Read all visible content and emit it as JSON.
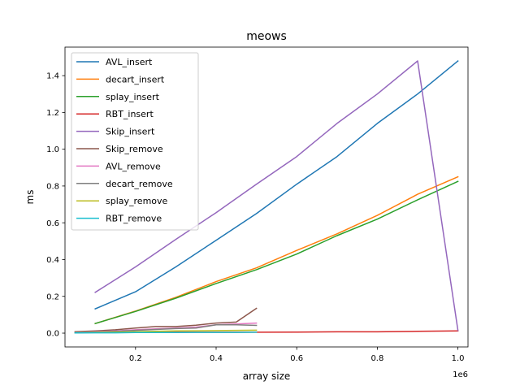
{
  "chart_data": {
    "type": "line",
    "title": "meows",
    "xlabel": "array size",
    "ylabel": "ms",
    "x_offset_text": "1e6",
    "xlim": [
      0.025,
      1.025
    ],
    "ylim": [
      -0.075,
      1.555
    ],
    "xticks": [
      {
        "value": 0.2,
        "label": "0.2"
      },
      {
        "value": 0.4,
        "label": "0.4"
      },
      {
        "value": 0.6,
        "label": "0.6"
      },
      {
        "value": 0.8,
        "label": "0.8"
      },
      {
        "value": 1.0,
        "label": "1.0"
      }
    ],
    "yticks": [
      {
        "value": 0.0,
        "label": "0.0"
      },
      {
        "value": 0.2,
        "label": "0.2"
      },
      {
        "value": 0.4,
        "label": "0.4"
      },
      {
        "value": 0.6,
        "label": "0.6"
      },
      {
        "value": 0.8,
        "label": "0.8"
      },
      {
        "value": 1.0,
        "label": "1.0"
      },
      {
        "value": 1.2,
        "label": "1.2"
      },
      {
        "value": 1.4,
        "label": "1.4"
      }
    ],
    "grid": false,
    "legend_position": "top-left",
    "series": [
      {
        "name": "AVL_insert",
        "color": "#1f77b4",
        "x": [
          0.1,
          0.2,
          0.3,
          0.4,
          0.5,
          0.6,
          0.7,
          0.8,
          0.9,
          1.0
        ],
        "y": [
          0.132,
          0.225,
          0.36,
          0.505,
          0.65,
          0.81,
          0.96,
          1.14,
          1.3,
          1.48
        ]
      },
      {
        "name": "decart_insert",
        "color": "#ff7f0e",
        "x": [
          0.1,
          0.2,
          0.3,
          0.4,
          0.5,
          0.6,
          0.7,
          0.8,
          0.9,
          1.0
        ],
        "y": [
          0.052,
          0.12,
          0.195,
          0.28,
          0.355,
          0.45,
          0.54,
          0.64,
          0.755,
          0.85
        ]
      },
      {
        "name": "splay_insert",
        "color": "#2ca02c",
        "x": [
          0.1,
          0.2,
          0.3,
          0.4,
          0.5,
          0.6,
          0.7,
          0.8,
          0.9,
          1.0
        ],
        "y": [
          0.052,
          0.118,
          0.19,
          0.27,
          0.345,
          0.43,
          0.53,
          0.62,
          0.725,
          0.825
        ]
      },
      {
        "name": "RBT_insert",
        "color": "#d62728",
        "x": [
          0.1,
          0.2,
          0.3,
          0.4,
          0.5,
          0.6,
          0.7,
          0.8,
          0.9,
          1.0
        ],
        "y": [
          0.004,
          0.004,
          0.005,
          0.005,
          0.005,
          0.006,
          0.007,
          0.007,
          0.01,
          0.012
        ]
      },
      {
        "name": "Skip_insert",
        "color": "#9467bd",
        "x": [
          0.1,
          0.2,
          0.3,
          0.4,
          0.5,
          0.6,
          0.7,
          0.8,
          0.9,
          1.0
        ],
        "y": [
          0.222,
          0.36,
          0.51,
          0.655,
          0.81,
          0.96,
          1.14,
          1.3,
          1.48,
          0.015
        ]
      },
      {
        "name": "Skip_remove",
        "color": "#8c564b",
        "x": [
          0.05,
          0.1,
          0.15,
          0.2,
          0.25,
          0.3,
          0.35,
          0.4,
          0.45,
          0.5
        ],
        "y": [
          0.008,
          0.012,
          0.018,
          0.028,
          0.036,
          0.036,
          0.043,
          0.055,
          0.06,
          0.135
        ]
      },
      {
        "name": "AVL_remove",
        "color": "#e377c2",
        "x": [
          0.05,
          0.1,
          0.15,
          0.2,
          0.25,
          0.3,
          0.35,
          0.4,
          0.45,
          0.5
        ],
        "y": [
          0.004,
          0.008,
          0.012,
          0.018,
          0.023,
          0.028,
          0.033,
          0.045,
          0.05,
          0.055
        ]
      },
      {
        "name": "decart_remove",
        "color": "#7f7f7f",
        "x": [
          0.05,
          0.1,
          0.15,
          0.2,
          0.25,
          0.3,
          0.35,
          0.4,
          0.45,
          0.5
        ],
        "y": [
          0.003,
          0.006,
          0.01,
          0.015,
          0.02,
          0.025,
          0.028,
          0.045,
          0.045,
          0.042
        ]
      },
      {
        "name": "splay_remove",
        "color": "#bcbd22",
        "x": [
          0.05,
          0.1,
          0.15,
          0.2,
          0.25,
          0.3,
          0.35,
          0.4,
          0.45,
          0.5
        ],
        "y": [
          0.002,
          0.004,
          0.006,
          0.008,
          0.01,
          0.012,
          0.013,
          0.014,
          0.015,
          0.016
        ]
      },
      {
        "name": "RBT_remove",
        "color": "#17becf",
        "x": [
          0.05,
          0.1,
          0.15,
          0.2,
          0.25,
          0.3,
          0.35,
          0.4,
          0.45,
          0.5
        ],
        "y": [
          0.001,
          0.002,
          0.002,
          0.003,
          0.003,
          0.003,
          0.004,
          0.004,
          0.004,
          0.005
        ]
      }
    ]
  }
}
